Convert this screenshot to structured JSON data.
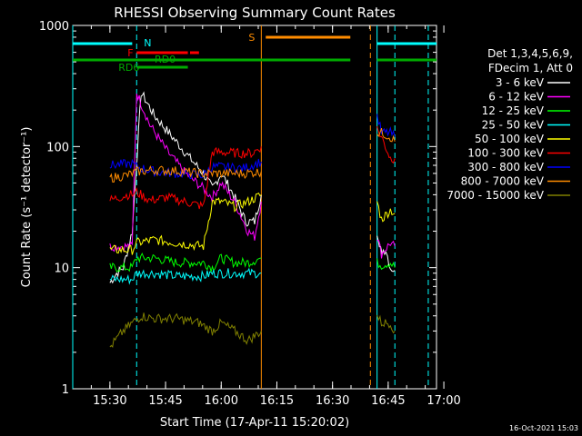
{
  "chart_data": {
    "type": "line",
    "title": "RHESSI Observing Summary Count Rates",
    "xlabel": "Start Time (17-Apr-11 15:20:02)",
    "ylabel": "Count Rate (s⁻¹ detector⁻¹)",
    "yscale": "log",
    "ylim": [
      1,
      1000
    ],
    "xlim_minutes": [
      15.333,
      16.967
    ],
    "x_ticks": [
      {
        "t": 15.5,
        "label": "15:30"
      },
      {
        "t": 15.75,
        "label": "15:45"
      },
      {
        "t": 16.0,
        "label": "16:00"
      },
      {
        "t": 16.25,
        "label": "16:15"
      },
      {
        "t": 16.5,
        "label": "16:30"
      },
      {
        "t": 16.75,
        "label": "16:45"
      },
      {
        "t": 17.0,
        "label": "17:00"
      }
    ],
    "y_ticks": [
      {
        "v": 1,
        "label": "1"
      },
      {
        "v": 10,
        "label": "10"
      },
      {
        "v": 100,
        "label": "100"
      },
      {
        "v": 1000,
        "label": "1000"
      }
    ],
    "legend_header": [
      "Det 1,3,4,5,6,9,",
      "FDecim 1, Att 0"
    ],
    "series": [
      {
        "name": "3 - 6 keV",
        "color": "#ffffff",
        "segments": [
          [
            [
              15.5,
              7.5
            ],
            [
              15.53,
              9
            ],
            [
              15.56,
              10
            ],
            [
              15.6,
              20
            ],
            [
              15.64,
              280
            ],
            [
              15.7,
              180
            ],
            [
              15.78,
              120
            ],
            [
              15.86,
              80
            ],
            [
              15.92,
              60
            ],
            [
              15.96,
              45
            ],
            [
              16.0,
              60
            ],
            [
              16.04,
              45
            ],
            [
              16.08,
              32
            ],
            [
              16.11,
              24
            ],
            [
              16.15,
              24
            ],
            [
              16.18,
              40
            ]
          ],
          [
            [
              16.7,
              20
            ],
            [
              16.71,
              14
            ],
            [
              16.74,
              14
            ],
            [
              16.76,
              10
            ],
            [
              16.78,
              9.5
            ]
          ]
        ]
      },
      {
        "name": "6 - 12 keV",
        "color": "#ff00ff",
        "segments": [
          [
            [
              15.5,
              15
            ],
            [
              15.6,
              15
            ],
            [
              15.62,
              280
            ],
            [
              15.68,
              150
            ],
            [
              15.76,
              90
            ],
            [
              15.84,
              60
            ],
            [
              15.92,
              45
            ],
            [
              15.96,
              38
            ],
            [
              16.0,
              50
            ],
            [
              16.06,
              35
            ],
            [
              16.12,
              20
            ],
            [
              16.15,
              18
            ],
            [
              16.18,
              35
            ]
          ],
          [
            [
              16.7,
              18
            ],
            [
              16.72,
              13
            ],
            [
              16.76,
              16
            ],
            [
              16.78,
              15
            ]
          ]
        ]
      },
      {
        "name": "12 - 25 keV",
        "color": "#00ff00",
        "segments": [
          [
            [
              15.5,
              10
            ],
            [
              15.6,
              10
            ],
            [
              15.62,
              12
            ],
            [
              15.7,
              12
            ],
            [
              15.8,
              11
            ],
            [
              15.92,
              11
            ],
            [
              15.96,
              10
            ],
            [
              16.0,
              12
            ],
            [
              16.06,
              11
            ],
            [
              16.12,
              11
            ],
            [
              16.18,
              12
            ]
          ],
          [
            [
              16.7,
              11
            ],
            [
              16.72,
              10.5
            ],
            [
              16.76,
              11
            ],
            [
              16.78,
              10
            ]
          ]
        ]
      },
      {
        "name": "25 - 50 keV",
        "color": "#00ffff",
        "segments": [
          [
            [
              15.5,
              8
            ],
            [
              15.6,
              8
            ],
            [
              15.62,
              9
            ],
            [
              15.7,
              9
            ],
            [
              15.8,
              8.5
            ],
            [
              15.92,
              8.5
            ],
            [
              15.96,
              9
            ],
            [
              16.0,
              9
            ],
            [
              16.1,
              9
            ],
            [
              16.18,
              9
            ]
          ]
        ]
      },
      {
        "name": "50 - 100 keV",
        "color": "#ffff00",
        "segments": [
          [
            [
              15.5,
              14
            ],
            [
              15.6,
              14
            ],
            [
              15.62,
              16
            ],
            [
              15.7,
              17
            ],
            [
              15.8,
              16
            ],
            [
              15.92,
              15
            ],
            [
              15.96,
              35
            ],
            [
              16.0,
              35
            ],
            [
              16.06,
              32
            ],
            [
              16.12,
              35
            ],
            [
              16.18,
              40
            ]
          ],
          [
            [
              16.7,
              35
            ],
            [
              16.72,
              25
            ],
            [
              16.76,
              30
            ],
            [
              16.78,
              28
            ]
          ]
        ]
      },
      {
        "name": "100 - 300 keV",
        "color": "#ff0000",
        "segments": [
          [
            [
              15.5,
              36
            ],
            [
              15.58,
              40
            ],
            [
              15.6,
              40
            ],
            [
              15.62,
              42
            ],
            [
              15.68,
              36
            ],
            [
              15.76,
              38
            ],
            [
              15.84,
              35
            ],
            [
              15.92,
              32
            ],
            [
              15.96,
              90
            ],
            [
              16.0,
              90
            ],
            [
              16.08,
              88
            ],
            [
              16.14,
              88
            ],
            [
              16.18,
              100
            ]
          ],
          [
            [
              16.7,
              140
            ],
            [
              16.72,
              120
            ],
            [
              16.76,
              80
            ],
            [
              16.78,
              80
            ]
          ]
        ]
      },
      {
        "name": "300 - 800 keV",
        "color": "#0000ff",
        "segments": [
          [
            [
              15.5,
              70
            ],
            [
              15.58,
              72
            ],
            [
              15.6,
              72
            ],
            [
              15.62,
              68
            ],
            [
              15.7,
              62
            ],
            [
              15.8,
              60
            ],
            [
              15.92,
              58
            ],
            [
              15.96,
              68
            ],
            [
              16.0,
              68
            ],
            [
              16.1,
              66
            ],
            [
              16.18,
              75
            ]
          ],
          [
            [
              16.7,
              180
            ],
            [
              16.72,
              130
            ],
            [
              16.76,
              130
            ],
            [
              16.78,
              120
            ]
          ]
        ]
      },
      {
        "name": "800 - 7000 keV",
        "color": "#ff8c00",
        "segments": [
          [
            [
              15.5,
              55
            ],
            [
              15.58,
              58
            ],
            [
              15.6,
              60
            ],
            [
              15.62,
              62
            ],
            [
              15.7,
              64
            ],
            [
              15.8,
              63
            ],
            [
              15.9,
              60
            ],
            [
              15.96,
              60
            ],
            [
              16.0,
              60
            ],
            [
              16.1,
              60
            ],
            [
              16.18,
              62
            ]
          ],
          [
            [
              16.7,
              130
            ],
            [
              16.72,
              130
            ],
            [
              16.76,
              120
            ],
            [
              16.78,
              110
            ]
          ]
        ]
      },
      {
        "name": "7000 - 15000 keV",
        "color": "#808000",
        "segments": [
          [
            [
              15.5,
              2.2
            ],
            [
              15.56,
              3
            ],
            [
              15.6,
              3.5
            ],
            [
              15.64,
              4
            ],
            [
              15.7,
              3.8
            ],
            [
              15.8,
              3.8
            ],
            [
              15.9,
              3.5
            ],
            [
              15.96,
              3
            ],
            [
              16.0,
              3.5
            ],
            [
              16.06,
              3
            ],
            [
              16.12,
              2.5
            ],
            [
              16.18,
              3
            ]
          ],
          [
            [
              16.7,
              4
            ],
            [
              16.72,
              3.5
            ],
            [
              16.76,
              3.5
            ],
            [
              16.78,
              3
            ]
          ]
        ]
      }
    ],
    "state_bars": [
      {
        "label": "N",
        "color": "#00ffff",
        "segments": [
          [
            15.333,
            15.6
          ],
          [
            16.7,
            16.967
          ]
        ]
      },
      {
        "label": "F",
        "color": "#ff0000",
        "segments": [
          [
            15.62,
            15.85
          ],
          [
            15.86,
            15.9
          ]
        ]
      },
      {
        "label": "RD0",
        "color": "#00aa00",
        "segments": [
          [
            15.333,
            16.58
          ],
          [
            16.7,
            16.967
          ]
        ]
      },
      {
        "label": "RD6",
        "color": "#00aa00",
        "segments": [
          [
            15.62,
            15.85
          ]
        ]
      },
      {
        "label": "S",
        "color": "#ff8c00",
        "segments": [
          [
            16.2,
            16.58
          ]
        ]
      }
    ]
  },
  "footer_date": "16-Oct-2021 15:03"
}
